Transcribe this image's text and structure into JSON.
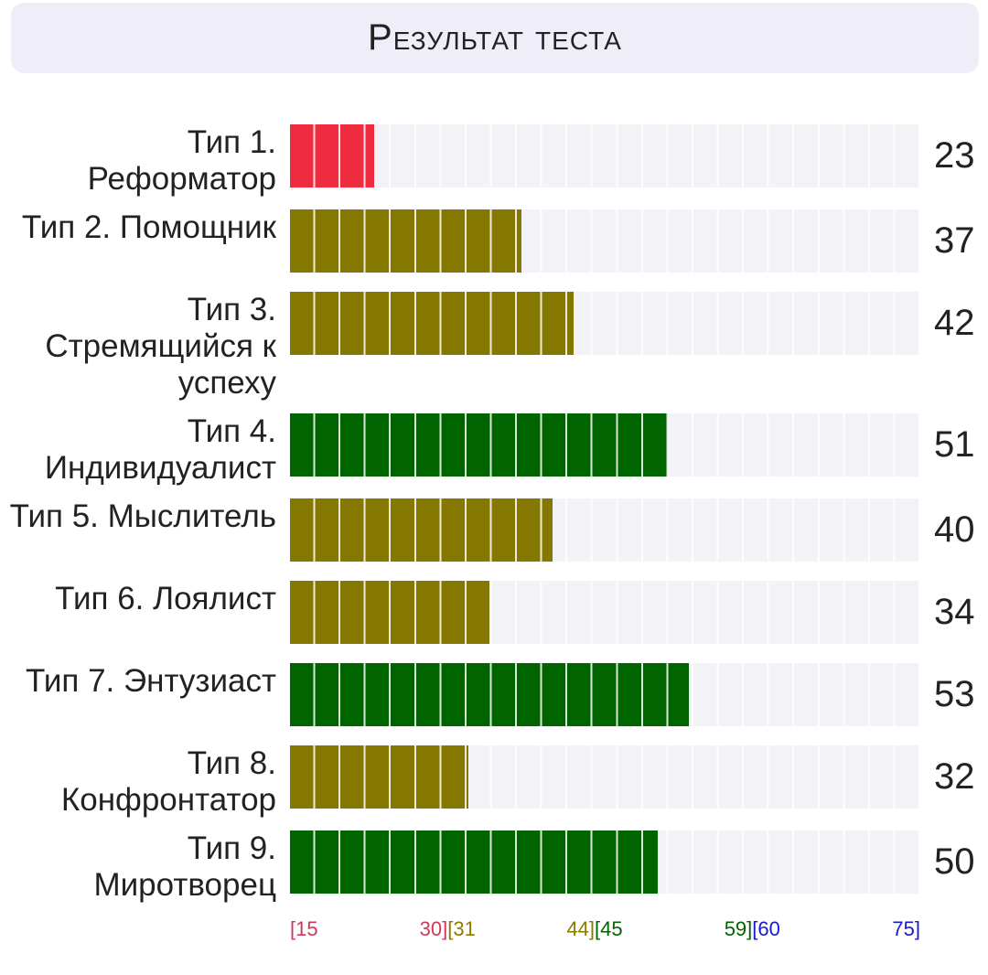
{
  "chart_data": {
    "type": "bar",
    "title": "Результат теста",
    "categories": [
      "Тип 1. Реформатор",
      "Тип 2. Помощник",
      "Тип 3. Стремящийся к успеху",
      "Тип 4. Индивидуалист",
      "Тип 5. Мыслитель",
      "Тип 6. Лоялист",
      "Тип 7. Энтузиаст",
      "Тип 8. Конфронтатор",
      "Тип 9. Миротворец"
    ],
    "values": [
      23,
      37,
      42,
      51,
      40,
      34,
      53,
      32,
      50
    ],
    "xlim": [
      15,
      75
    ],
    "ranges": [
      {
        "from": {
          "value": 15,
          "label": "[15"
        },
        "to": {
          "value": 30,
          "label": "30]"
        },
        "color": "#ef2b3f",
        "tick_color": "#d0385a"
      },
      {
        "from": {
          "value": 31,
          "label": "[31"
        },
        "to": {
          "value": 44,
          "label": "44]"
        },
        "color": "#857800",
        "tick_color": "#8b7b00"
      },
      {
        "from": {
          "value": 45,
          "label": "[45"
        },
        "to": {
          "value": 59,
          "label": "59]"
        },
        "color": "#006400",
        "tick_color": "#006400"
      },
      {
        "from": {
          "value": 60,
          "label": "[60"
        },
        "to": {
          "value": 75,
          "label": "75]"
        },
        "color": "#1a1acd",
        "tick_color": "#1a1acd"
      }
    ]
  }
}
